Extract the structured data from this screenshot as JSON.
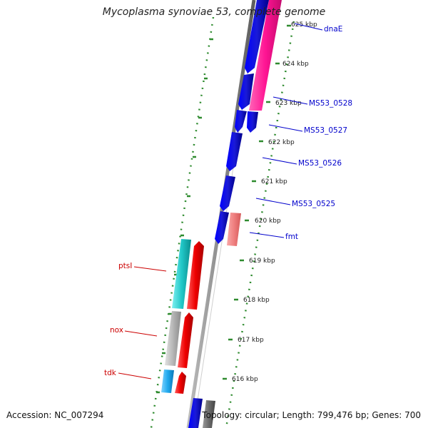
{
  "title": "Mycoplasma synoviae 53, complete genome",
  "footer": {
    "accession": "Accession: NC_007294",
    "summary": "Topology: circular; Length: 799,476 bp; Genes: 700"
  },
  "colors": {
    "background": "#ffffff",
    "backbone": "#8a8a8a",
    "scale_ticks": "#2e8b2e",
    "plus_strand_label": "#0000cc",
    "minus_strand_label": "#cc0000",
    "gene_blue": "#0000ee",
    "gene_magenta": "#ff1493",
    "gene_salmon": "#f08080",
    "gene_cyan": "#20c6c6",
    "gene_red": "#ee0000",
    "gene_gray": "#b4b4b4",
    "gene_sky": "#22aaee"
  },
  "scale": {
    "unit": "kbp",
    "ticks": [
      "625 kbp",
      "624 kbp",
      "623 kbp",
      "622 kbp",
      "621 kbp",
      "620 kbp",
      "619 kbp",
      "618 kbp",
      "617 kbp",
      "616 kbp"
    ]
  },
  "gene_labels_plus": [
    "dnaE",
    "MS53_0528",
    "MS53_0527",
    "MS53_0526",
    "MS53_0525",
    "fmt"
  ],
  "gene_labels_minus": [
    "ptsI",
    "nox",
    "tdk"
  ]
}
